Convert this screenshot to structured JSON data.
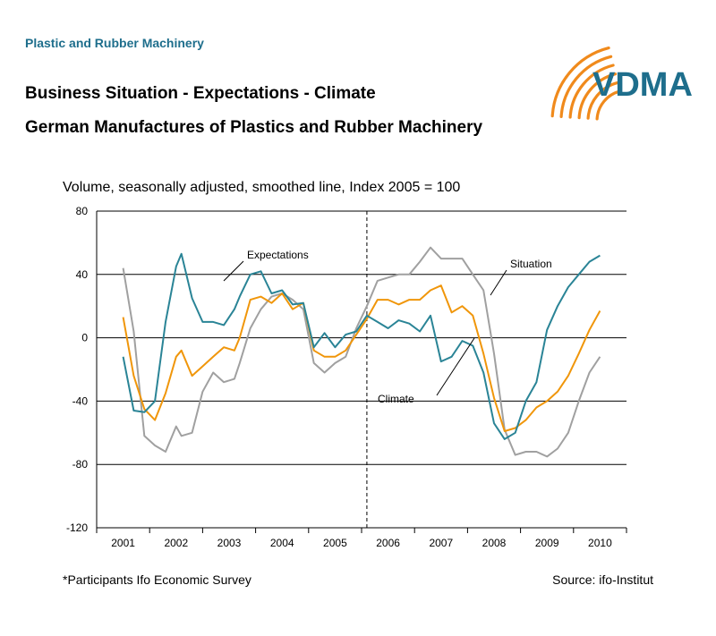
{
  "header": {
    "section_label": "Plastic and Rubber Machinery",
    "title_line1": "Business Situation - Expectations - Climate",
    "title_line2": "German Manufactures of Plastics and Rubber Machinery",
    "logo_text": "VDMA",
    "logo_color": "#1e6e8c",
    "logo_swoosh_color": "#f08a1c"
  },
  "chart_data": {
    "type": "line",
    "subtitle": "Volume, seasonally adjusted, smoothed line, Index 2005 = 100",
    "ylim": [
      -120,
      80
    ],
    "yticks": [
      -120,
      -80,
      -40,
      0,
      40,
      80
    ],
    "xlim": [
      2000.5,
      2010.5
    ],
    "xticks": [
      2001,
      2002,
      2003,
      2004,
      2005,
      2006,
      2007,
      2008,
      2009,
      2010
    ],
    "gridlines": "horizontal",
    "marker_line_x": 2005.6,
    "series": [
      {
        "name": "Expectations",
        "color": "#2a8496",
        "x": [
          2001.0,
          2001.2,
          2001.4,
          2001.6,
          2001.8,
          2002.0,
          2002.1,
          2002.3,
          2002.5,
          2002.7,
          2002.9,
          2003.1,
          2003.2,
          2003.4,
          2003.6,
          2003.8,
          2004.0,
          2004.2,
          2004.4,
          2004.6,
          2004.8,
          2005.0,
          2005.2,
          2005.4,
          2005.6,
          2005.8,
          2006.0,
          2006.2,
          2006.4,
          2006.6,
          2006.8,
          2007.0,
          2007.2,
          2007.4,
          2007.6,
          2007.8,
          2008.0,
          2008.2,
          2008.4,
          2008.6,
          2008.8,
          2009.0,
          2009.2,
          2009.4,
          2009.6,
          2009.8,
          2010.0
        ],
        "y": [
          -12,
          -46,
          -47,
          -40,
          10,
          45,
          53,
          25,
          10,
          10,
          8,
          18,
          26,
          40,
          42,
          28,
          30,
          21,
          22,
          -6,
          3,
          -6,
          2,
          4,
          14,
          10,
          6,
          11,
          9,
          4,
          14,
          -15,
          -12,
          -2,
          -5,
          -22,
          -54,
          -64,
          -60,
          -40,
          -28,
          5,
          20,
          32,
          40,
          48,
          52
        ]
      },
      {
        "name": "Climate",
        "color": "#f0960a",
        "x": [
          2001.0,
          2001.2,
          2001.4,
          2001.6,
          2001.8,
          2002.0,
          2002.1,
          2002.3,
          2002.5,
          2002.7,
          2002.9,
          2003.1,
          2003.2,
          2003.4,
          2003.6,
          2003.8,
          2004.0,
          2004.2,
          2004.4,
          2004.6,
          2004.8,
          2005.0,
          2005.2,
          2005.4,
          2005.6,
          2005.8,
          2006.0,
          2006.2,
          2006.4,
          2006.6,
          2006.8,
          2007.0,
          2007.2,
          2007.4,
          2007.6,
          2007.8,
          2008.0,
          2008.2,
          2008.4,
          2008.6,
          2008.8,
          2009.0,
          2009.2,
          2009.4,
          2009.6,
          2009.8,
          2010.0
        ],
        "y": [
          13,
          -24,
          -45,
          -52,
          -35,
          -12,
          -8,
          -24,
          -18,
          -12,
          -6,
          -8,
          0,
          24,
          26,
          22,
          28,
          18,
          22,
          -8,
          -12,
          -12,
          -8,
          2,
          12,
          24,
          24,
          21,
          24,
          24,
          30,
          33,
          16,
          20,
          14,
          -10,
          -38,
          -59,
          -57,
          -52,
          -44,
          -40,
          -34,
          -24,
          -10,
          5,
          17
        ]
      },
      {
        "name": "Situation",
        "color": "#a0a0a0",
        "x": [
          2001.0,
          2001.2,
          2001.4,
          2001.6,
          2001.8,
          2002.0,
          2002.1,
          2002.3,
          2002.5,
          2002.7,
          2002.9,
          2003.1,
          2003.2,
          2003.4,
          2003.6,
          2003.8,
          2004.0,
          2004.2,
          2004.4,
          2004.6,
          2004.8,
          2005.0,
          2005.2,
          2005.4,
          2005.6,
          2005.8,
          2006.0,
          2006.2,
          2006.4,
          2006.6,
          2006.8,
          2007.0,
          2007.2,
          2007.4,
          2007.6,
          2007.8,
          2008.0,
          2008.2,
          2008.4,
          2008.6,
          2008.8,
          2009.0,
          2009.2,
          2009.4,
          2009.6,
          2009.8,
          2010.0
        ],
        "y": [
          44,
          4,
          -62,
          -68,
          -72,
          -56,
          -62,
          -60,
          -34,
          -22,
          -28,
          -26,
          -16,
          6,
          18,
          26,
          28,
          24,
          18,
          -16,
          -22,
          -16,
          -12,
          6,
          20,
          36,
          38,
          40,
          40,
          48,
          57,
          50,
          50,
          50,
          40,
          30,
          -10,
          -58,
          -74,
          -72,
          -72,
          -75,
          -70,
          -60,
          -40,
          -22,
          -12
        ]
      }
    ],
    "annotations": [
      {
        "text": "Expectations",
        "series": "Expectations"
      },
      {
        "text": "Situation",
        "series": "Situation"
      },
      {
        "text": "Climate",
        "series": "Climate"
      }
    ]
  },
  "footer": {
    "footnote": "*Participants Ifo Economic Survey",
    "source": "Source: ifo-Institut"
  }
}
